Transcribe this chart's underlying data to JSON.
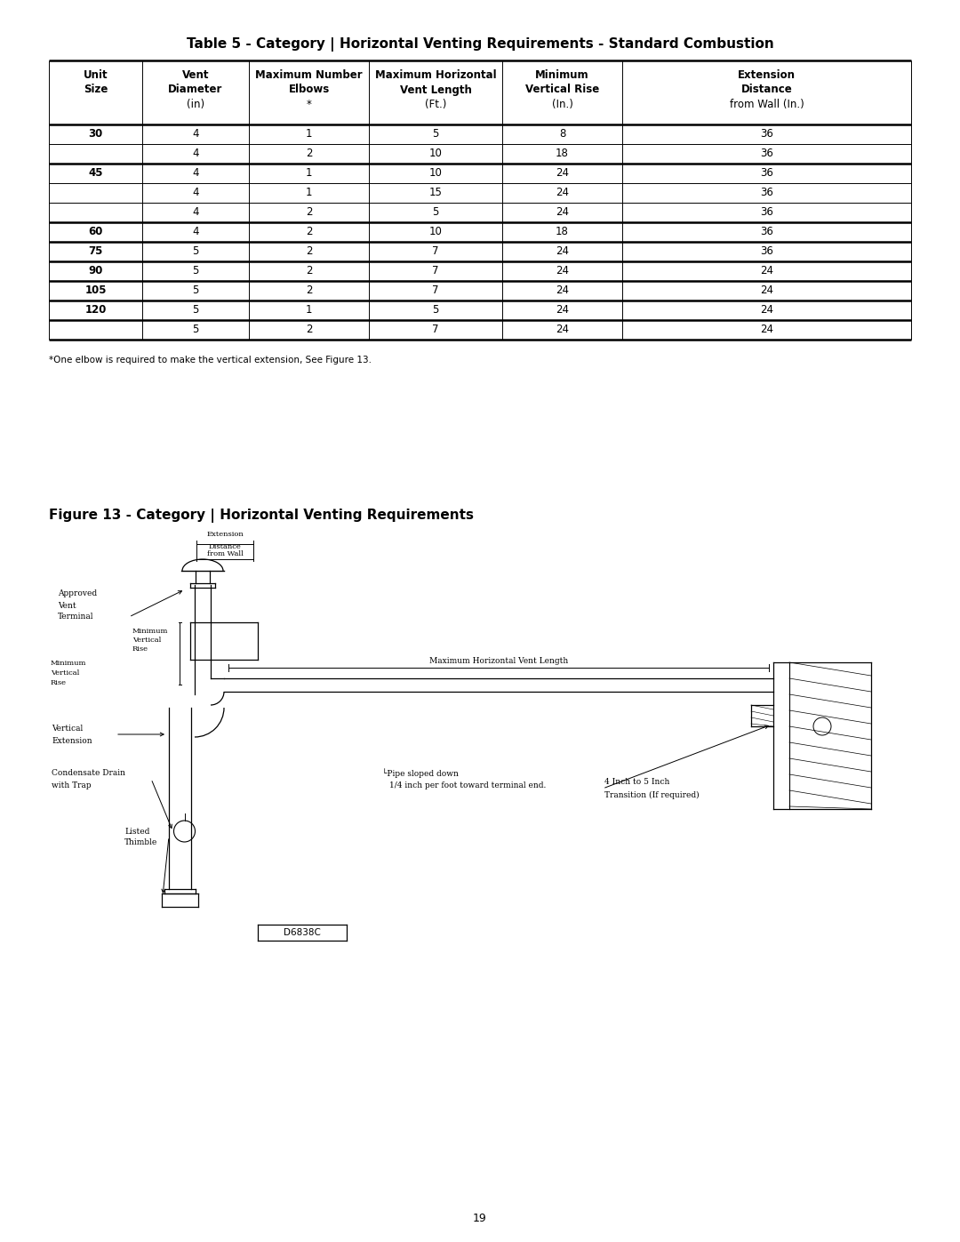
{
  "page_title": "Table 5 - Category | Horizontal Venting Requirements - Standard Combustion",
  "figure_title": "Figure 13 - Category | Horizontal Venting Requirements",
  "footnote": "*One elbow is required to make the vertical extension, See Figure 13.",
  "page_number": "19",
  "diagram_code": "D6838C",
  "col_headers_line1": [
    "Unit",
    "Vent",
    "Maximum Number",
    "Maximum Horizontal",
    "Minimum",
    "Extension"
  ],
  "col_headers_line2": [
    "Size",
    "Diameter",
    "Elbows",
    "Vent Length",
    "Vertical Rise",
    "Distance"
  ],
  "col_headers_line3": [
    "",
    "(in)",
    "*",
    "(Ft.)",
    "(In.)",
    "from Wall (In.)"
  ],
  "table_data": [
    [
      "30",
      "4",
      "1",
      "5",
      "8",
      "36"
    ],
    [
      "",
      "4",
      "2",
      "10",
      "18",
      "36"
    ],
    [
      "45",
      "4",
      "1",
      "10",
      "24",
      "36"
    ],
    [
      "",
      "4",
      "1",
      "15",
      "24",
      "36"
    ],
    [
      "",
      "4",
      "2",
      "5",
      "24",
      "36"
    ],
    [
      "60",
      "4",
      "2",
      "10",
      "18",
      "36"
    ],
    [
      "75",
      "5",
      "2",
      "7",
      "24",
      "36"
    ],
    [
      "90",
      "5",
      "2",
      "7",
      "24",
      "24"
    ],
    [
      "105",
      "5",
      "2",
      "7",
      "24",
      "24"
    ],
    [
      "120",
      "5",
      "1",
      "5",
      "24",
      "24"
    ],
    [
      "",
      "5",
      "2",
      "7",
      "24",
      "24"
    ]
  ],
  "bg_color": "#ffffff",
  "text_color": "#000000",
  "line_color": "#000000"
}
